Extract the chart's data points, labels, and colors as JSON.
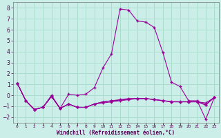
{
  "xlabel": "Windchill (Refroidissement éolien,°C)",
  "background_color": "#cceee8",
  "grid_color": "#aaddcc",
  "line_color": "#990099",
  "x": [
    0,
    1,
    2,
    3,
    4,
    5,
    6,
    7,
    8,
    9,
    10,
    11,
    12,
    13,
    14,
    15,
    16,
    17,
    18,
    19,
    20,
    21,
    22,
    23
  ],
  "series1": [
    1.1,
    -0.5,
    -1.3,
    -1.1,
    0.0,
    -1.2,
    0.1,
    0.0,
    0.1,
    0.7,
    2.5,
    3.8,
    7.9,
    7.8,
    6.8,
    6.7,
    6.2,
    3.9,
    1.2,
    0.8,
    -0.5,
    -0.5,
    -2.2,
    -0.2
  ],
  "series2": [
    1.1,
    -0.5,
    -1.3,
    -1.1,
    -0.1,
    -1.2,
    -0.8,
    -1.1,
    -1.1,
    -0.8,
    -0.7,
    -0.6,
    -0.5,
    -0.4,
    -0.3,
    -0.3,
    -0.4,
    -0.5,
    -0.6,
    -0.6,
    -0.6,
    -0.6,
    -0.7,
    -0.2
  ],
  "series3": [
    1.1,
    -0.5,
    -1.3,
    -1.1,
    -0.1,
    -1.2,
    -0.8,
    -1.1,
    -1.1,
    -0.8,
    -0.6,
    -0.5,
    -0.4,
    -0.3,
    -0.3,
    -0.3,
    -0.4,
    -0.5,
    -0.6,
    -0.6,
    -0.6,
    -0.6,
    -0.9,
    -0.2
  ],
  "series4": [
    1.1,
    -0.5,
    -1.3,
    -1.1,
    -0.1,
    -1.2,
    -0.8,
    -1.1,
    -1.1,
    -0.8,
    -0.6,
    -0.5,
    -0.45,
    -0.35,
    -0.3,
    -0.3,
    -0.38,
    -0.48,
    -0.58,
    -0.58,
    -0.58,
    -0.58,
    -0.85,
    -0.2
  ],
  "ylim": [
    -2.5,
    8.5
  ],
  "yticks": [
    -2,
    -1,
    0,
    1,
    2,
    3,
    4,
    5,
    6,
    7,
    8
  ],
  "xlim": [
    -0.5,
    23.5
  ]
}
